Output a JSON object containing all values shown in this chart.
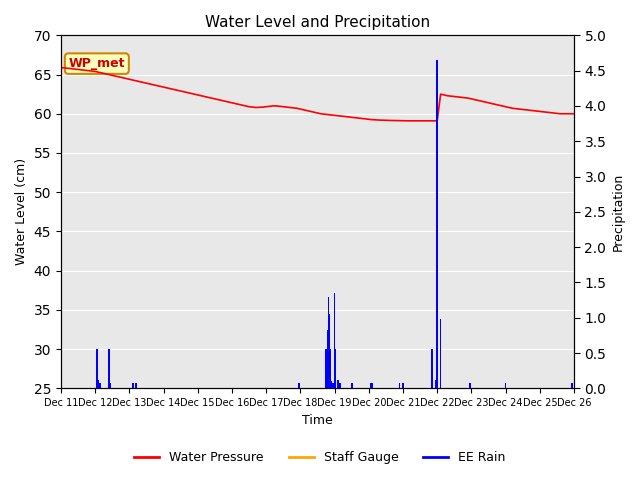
{
  "title": "Water Level and Precipitation",
  "xlabel": "Time",
  "ylabel_left": "Water Level (cm)",
  "ylabel_right": "Precipitation",
  "ylim_left": [
    25,
    70
  ],
  "ylim_right": [
    0.0,
    5.0
  ],
  "yticks_left": [
    25,
    30,
    35,
    40,
    45,
    50,
    55,
    60,
    65,
    70
  ],
  "yticks_right": [
    0.0,
    0.5,
    1.0,
    1.5,
    2.0,
    2.5,
    3.0,
    3.5,
    4.0,
    4.5,
    5.0
  ],
  "xtick_positions": [
    0,
    1,
    2,
    3,
    4,
    5,
    6,
    7,
    8,
    9,
    10,
    11,
    12,
    13,
    14,
    15
  ],
  "xtick_labels": [
    "Dec 11",
    "Dec 12",
    "Dec 13",
    "Dec 14",
    "Dec 15",
    "Dec 16",
    "Dec 17",
    "Dec 18",
    "Dec 19",
    "Dec 20",
    "Dec 21",
    "Dec 22",
    "Dec 23",
    "Dec 24",
    "Dec 25",
    "Dec 26"
  ],
  "background_color": "#e8e8e8",
  "annotation_box": "WP_met",
  "annotation_box_color": "#ffffc0",
  "annotation_box_border": "#cc8800",
  "annotation_text_color": "#cc0000",
  "water_pressure_x": [
    0.0,
    0.1,
    0.2,
    0.3,
    0.4,
    0.5,
    0.6,
    0.7,
    0.8,
    0.9,
    1.0,
    1.1,
    1.2,
    1.3,
    1.4,
    1.5,
    1.6,
    1.7,
    1.8,
    1.9,
    2.0,
    2.1,
    2.2,
    2.3,
    2.4,
    2.5,
    2.6,
    2.7,
    2.8,
    2.9,
    3.0,
    3.1,
    3.2,
    3.3,
    3.4,
    3.5,
    3.6,
    3.7,
    3.8,
    3.9,
    4.0,
    4.1,
    4.2,
    4.3,
    4.4,
    4.5,
    4.6,
    4.7,
    4.8,
    4.9,
    5.0,
    5.1,
    5.2,
    5.3,
    5.4,
    5.5,
    5.6,
    5.7,
    5.8,
    5.9,
    6.0,
    6.1,
    6.2,
    6.3,
    6.4,
    6.5,
    6.6,
    6.7,
    6.8,
    6.9,
    7.0,
    7.1,
    7.2,
    7.3,
    7.4,
    7.5,
    7.6,
    7.7,
    7.8,
    7.9,
    8.0,
    8.1,
    8.2,
    8.3,
    8.4,
    8.5,
    8.6,
    8.7,
    8.8,
    8.9,
    9.0,
    9.1,
    9.2,
    9.3,
    9.4,
    9.5,
    9.6,
    9.7,
    9.8,
    9.9,
    10.0,
    10.1,
    10.2,
    10.3,
    10.4,
    10.5,
    10.6,
    10.7,
    10.8,
    10.9,
    11.0,
    11.1,
    11.2,
    11.3,
    11.4,
    11.5,
    11.6,
    11.7,
    11.8,
    11.9,
    12.0,
    12.1,
    12.2,
    12.3,
    12.4,
    12.5,
    12.6,
    12.7,
    12.8,
    12.9,
    13.0,
    13.1,
    13.2,
    13.3,
    13.4,
    13.5,
    13.6,
    13.7,
    13.8,
    13.9,
    14.0,
    14.1,
    14.2,
    14.3,
    14.4,
    14.5,
    14.6,
    14.7,
    14.8,
    14.9,
    15.0
  ],
  "water_pressure_y": [
    65.9,
    65.85,
    65.8,
    65.75,
    65.7,
    65.65,
    65.6,
    65.55,
    65.5,
    65.45,
    65.4,
    65.3,
    65.2,
    65.1,
    65.0,
    64.9,
    64.8,
    64.7,
    64.6,
    64.5,
    64.4,
    64.3,
    64.2,
    64.1,
    64.0,
    63.9,
    63.8,
    63.7,
    63.6,
    63.5,
    63.4,
    63.3,
    63.2,
    63.1,
    63.0,
    62.9,
    62.8,
    62.7,
    62.6,
    62.5,
    62.4,
    62.3,
    62.2,
    62.1,
    62.0,
    61.9,
    61.8,
    61.7,
    61.6,
    61.5,
    61.4,
    61.3,
    61.2,
    61.1,
    61.0,
    60.9,
    60.85,
    60.8,
    60.82,
    60.85,
    60.9,
    60.95,
    61.0,
    61.0,
    60.95,
    60.9,
    60.85,
    60.8,
    60.75,
    60.7,
    60.6,
    60.5,
    60.4,
    60.3,
    60.2,
    60.1,
    60.0,
    59.95,
    59.9,
    59.85,
    59.8,
    59.75,
    59.7,
    59.65,
    59.6,
    59.55,
    59.5,
    59.45,
    59.4,
    59.35,
    59.3,
    59.25,
    59.22,
    59.2,
    59.18,
    59.16,
    59.15,
    59.14,
    59.13,
    59.12,
    59.1,
    59.1,
    59.1,
    59.1,
    59.1,
    59.1,
    59.1,
    59.1,
    59.1,
    59.09,
    59.1,
    62.5,
    62.4,
    62.3,
    62.25,
    62.2,
    62.15,
    62.1,
    62.05,
    62.0,
    61.9,
    61.8,
    61.7,
    61.6,
    61.5,
    61.4,
    61.3,
    61.2,
    61.1,
    61.0,
    60.9,
    60.8,
    60.7,
    60.65,
    60.6,
    60.55,
    60.5,
    60.45,
    60.4,
    60.35,
    60.3,
    60.25,
    60.2,
    60.15,
    60.1,
    60.05,
    60.0,
    60.0,
    60.0,
    60.0,
    60.0
  ],
  "rain_x": [
    1.05,
    1.1,
    1.15,
    1.4,
    1.45,
    2.1,
    2.2,
    6.95,
    7.75,
    7.8,
    7.82,
    7.84,
    7.86,
    7.88,
    7.9,
    7.92,
    7.95,
    8.0,
    8.02,
    8.1,
    8.15,
    8.5,
    9.05,
    9.1,
    9.9,
    10.0,
    10.85,
    10.95,
    11.0,
    11.1,
    11.95,
    13.0,
    14.95
  ],
  "rain_y_precip": [
    0.55,
    0.12,
    0.08,
    0.55,
    0.08,
    0.08,
    0.08,
    0.08,
    0.55,
    0.82,
    1.3,
    1.05,
    0.55,
    0.25,
    0.1,
    0.08,
    0.08,
    1.35,
    0.55,
    0.12,
    0.08,
    0.08,
    0.08,
    0.08,
    0.08,
    0.08,
    0.55,
    0.12,
    4.65,
    0.98,
    0.08,
    0.08,
    0.08
  ]
}
